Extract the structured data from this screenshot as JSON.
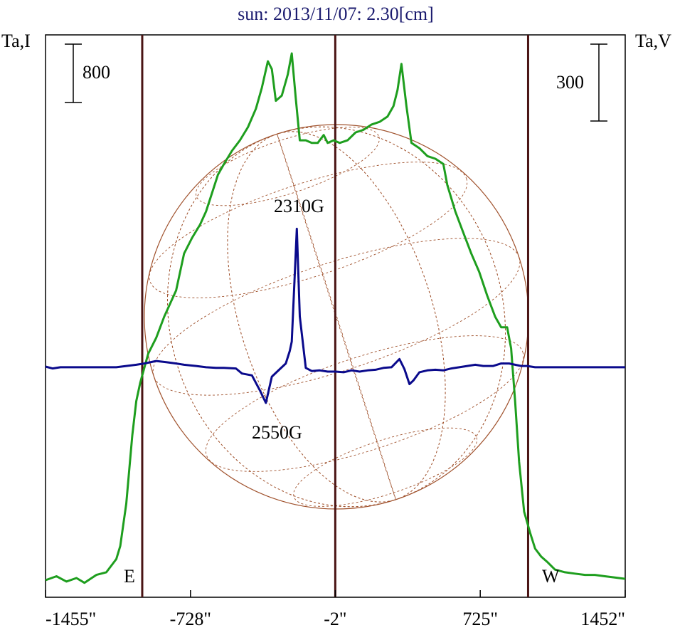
{
  "chart_data": {
    "type": "line",
    "title": "sun: 2013/11/07: 2.30[cm]",
    "ylabel_left": "Ta,I",
    "ylabel_right": "Ta,V",
    "scale_bar_left": "800",
    "scale_bar_right": "300",
    "x_ticks": [
      {
        "value": -1455,
        "label": "-1455\""
      },
      {
        "value": -728,
        "label": "-728\""
      },
      {
        "value": -2,
        "label": "-2\""
      },
      {
        "value": 725,
        "label": "725\""
      },
      {
        "value": 1452,
        "label": "1452\""
      }
    ],
    "xlim": [
      -1455,
      1452
    ],
    "limb_markers": {
      "east": -970,
      "center": -2,
      "west": 965
    },
    "limb_labels": {
      "east": "E",
      "west": "W"
    },
    "annotations": [
      {
        "text": "2310G",
        "x": -140
      },
      {
        "text": "2550G",
        "x": -280
      }
    ],
    "colors": {
      "stokes_i": "#1e9e1e",
      "stokes_v": "#0a0a8c",
      "disk": "#a0522d",
      "limb_line": "#4a1414",
      "title": "#1a1a6e"
    },
    "series": [
      {
        "key": "I",
        "values": [
          [
            -1455,
            0
          ],
          [
            -1400,
            0.015
          ],
          [
            -1350,
            -0.005
          ],
          [
            -1300,
            0.008
          ],
          [
            -1260,
            -0.01
          ],
          [
            -1200,
            0.02
          ],
          [
            -1150,
            0.03
          ],
          [
            -1100,
            0.08
          ],
          [
            -1080,
            0.13
          ],
          [
            -1050,
            0.29
          ],
          [
            -1020,
            0.55
          ],
          [
            -1000,
            0.68
          ],
          [
            -980,
            0.75
          ],
          [
            -940,
            0.86
          ],
          [
            -900,
            0.92
          ],
          [
            -860,
            1.0
          ],
          [
            -830,
            1.05
          ],
          [
            -800,
            1.1
          ],
          [
            -760,
            1.24
          ],
          [
            -720,
            1.3
          ],
          [
            -680,
            1.35
          ],
          [
            -650,
            1.4
          ],
          [
            -620,
            1.47
          ],
          [
            -590,
            1.54
          ],
          [
            -560,
            1.58
          ],
          [
            -520,
            1.63
          ],
          [
            -480,
            1.67
          ],
          [
            -440,
            1.72
          ],
          [
            -400,
            1.79
          ],
          [
            -370,
            1.87
          ],
          [
            -340,
            1.97
          ],
          [
            -320,
            1.94
          ],
          [
            -300,
            1.82
          ],
          [
            -270,
            1.84
          ],
          [
            -240,
            1.92
          ],
          [
            -220,
            2.0
          ],
          [
            -200,
            1.83
          ],
          [
            -180,
            1.67
          ],
          [
            -150,
            1.67
          ],
          [
            -120,
            1.66
          ],
          [
            -90,
            1.66
          ],
          [
            -60,
            1.69
          ],
          [
            -40,
            1.66
          ],
          [
            -10,
            1.67
          ],
          [
            20,
            1.66
          ],
          [
            60,
            1.67
          ],
          [
            100,
            1.7
          ],
          [
            140,
            1.71
          ],
          [
            180,
            1.73
          ],
          [
            220,
            1.74
          ],
          [
            260,
            1.76
          ],
          [
            290,
            1.8
          ],
          [
            310,
            1.86
          ],
          [
            330,
            1.96
          ],
          [
            355,
            1.8
          ],
          [
            380,
            1.66
          ],
          [
            420,
            1.64
          ],
          [
            460,
            1.61
          ],
          [
            500,
            1.6
          ],
          [
            540,
            1.58
          ],
          [
            560,
            1.5
          ],
          [
            600,
            1.4
          ],
          [
            640,
            1.32
          ],
          [
            680,
            1.24
          ],
          [
            720,
            1.17
          ],
          [
            760,
            1.08
          ],
          [
            800,
            1.0
          ],
          [
            830,
            0.96
          ],
          [
            860,
            0.96
          ],
          [
            880,
            0.88
          ],
          [
            900,
            0.68
          ],
          [
            920,
            0.45
          ],
          [
            945,
            0.26
          ],
          [
            975,
            0.18
          ],
          [
            1000,
            0.12
          ],
          [
            1030,
            0.09
          ],
          [
            1060,
            0.07
          ],
          [
            1100,
            0.04
          ],
          [
            1150,
            0.03
          ],
          [
            1200,
            0.025
          ],
          [
            1250,
            0.02
          ],
          [
            1300,
            0.02
          ],
          [
            1350,
            0.015
          ],
          [
            1400,
            0.01
          ],
          [
            1452,
            0.005
          ]
        ]
      },
      {
        "key": "V",
        "values": [
          [
            -1455,
            0
          ],
          [
            -1420,
            -0.03
          ],
          [
            -1380,
            -0.01
          ],
          [
            -1330,
            -0.01
          ],
          [
            -1290,
            -0.01
          ],
          [
            -1200,
            -0.01
          ],
          [
            -1150,
            -0.01
          ],
          [
            -1100,
            -0.01
          ],
          [
            -1000,
            0.03
          ],
          [
            -960,
            0.05
          ],
          [
            -900,
            0.09
          ],
          [
            -850,
            0.07
          ],
          [
            -800,
            0.05
          ],
          [
            -760,
            0.03
          ],
          [
            -700,
            0.01
          ],
          [
            -650,
            -0.01
          ],
          [
            -600,
            -0.02
          ],
          [
            -560,
            -0.02
          ],
          [
            -500,
            -0.03
          ],
          [
            -470,
            -0.11
          ],
          [
            -420,
            -0.14
          ],
          [
            -380,
            -0.38
          ],
          [
            -350,
            -0.58
          ],
          [
            -320,
            -0.16
          ],
          [
            -280,
            -0.04
          ],
          [
            -250,
            0.05
          ],
          [
            -230,
            0.25
          ],
          [
            -220,
            0.4
          ],
          [
            -195,
            2.2
          ],
          [
            -180,
            0.8
          ],
          [
            -150,
            -0.02
          ],
          [
            -120,
            -0.07
          ],
          [
            -80,
            -0.06
          ],
          [
            -40,
            -0.08
          ],
          [
            0,
            -0.08
          ],
          [
            40,
            -0.09
          ],
          [
            80,
            -0.06
          ],
          [
            120,
            -0.08
          ],
          [
            160,
            -0.06
          ],
          [
            200,
            -0.05
          ],
          [
            240,
            -0.02
          ],
          [
            280,
            -0.01
          ],
          [
            320,
            0.12
          ],
          [
            345,
            -0.04
          ],
          [
            370,
            -0.28
          ],
          [
            390,
            -0.22
          ],
          [
            420,
            -0.09
          ],
          [
            460,
            -0.06
          ],
          [
            500,
            -0.05
          ],
          [
            540,
            -0.06
          ],
          [
            580,
            -0.03
          ],
          [
            620,
            -0.01
          ],
          [
            660,
            0.01
          ],
          [
            700,
            0.03
          ],
          [
            740,
            0.01
          ],
          [
            790,
            0.01
          ],
          [
            830,
            0.05
          ],
          [
            870,
            0.05
          ],
          [
            900,
            0.03
          ],
          [
            930,
            0.01
          ],
          [
            960,
            0.01
          ],
          [
            1000,
            -0.01
          ],
          [
            1050,
            -0.01
          ],
          [
            1100,
            -0.01
          ],
          [
            1200,
            -0.01
          ],
          [
            1300,
            -0.01
          ],
          [
            1452,
            -0.01
          ]
        ]
      }
    ]
  }
}
